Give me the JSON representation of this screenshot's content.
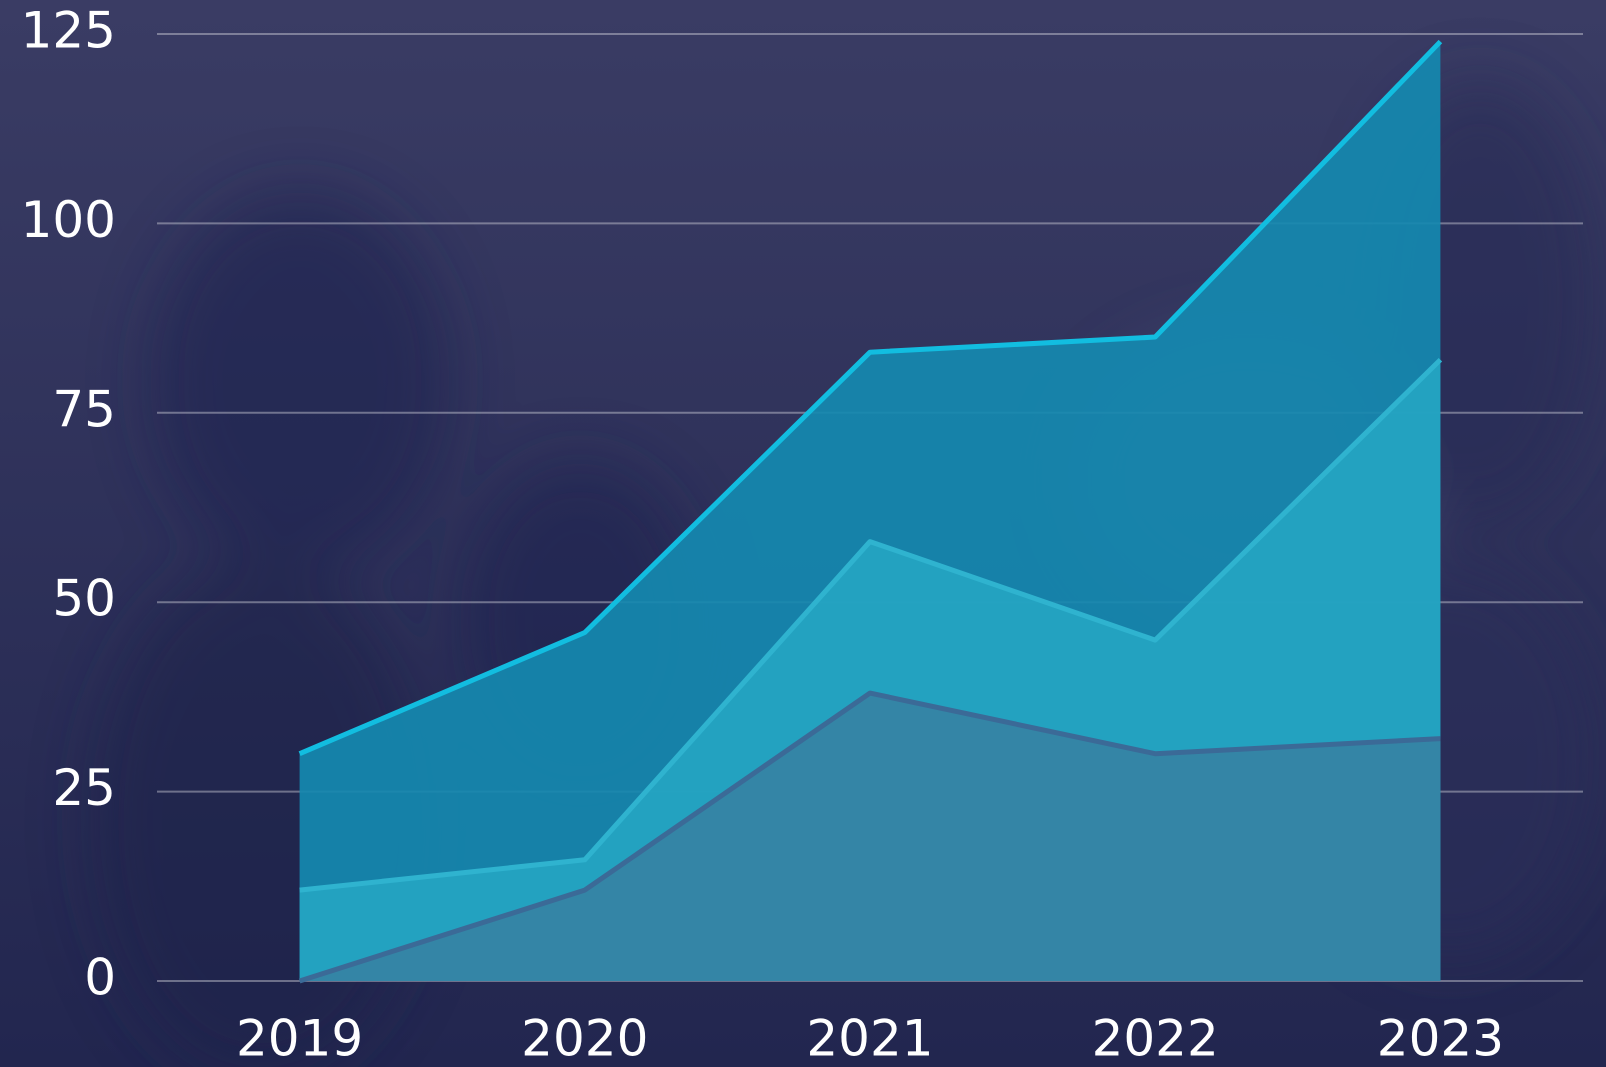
{
  "chart_data": {
    "type": "area",
    "categories": [
      "2019",
      "2020",
      "2021",
      "2022",
      "2023"
    ],
    "series": [
      {
        "color": "#1589b0",
        "line_color": "#12bde0",
        "values": [
          30,
          46,
          83,
          85,
          124
        ]
      },
      {
        "color": "#25a5c2",
        "line_color": "#2fb3cf",
        "values": [
          12,
          16,
          58,
          45,
          82
        ]
      },
      {
        "color": "#3682a4",
        "line_color": "#3b6a97",
        "values": [
          0,
          12,
          38,
          30,
          32
        ]
      }
    ],
    "ylim": [
      0,
      125
    ],
    "yticks": [
      0,
      25,
      50,
      75,
      100,
      125
    ],
    "grid": true
  }
}
